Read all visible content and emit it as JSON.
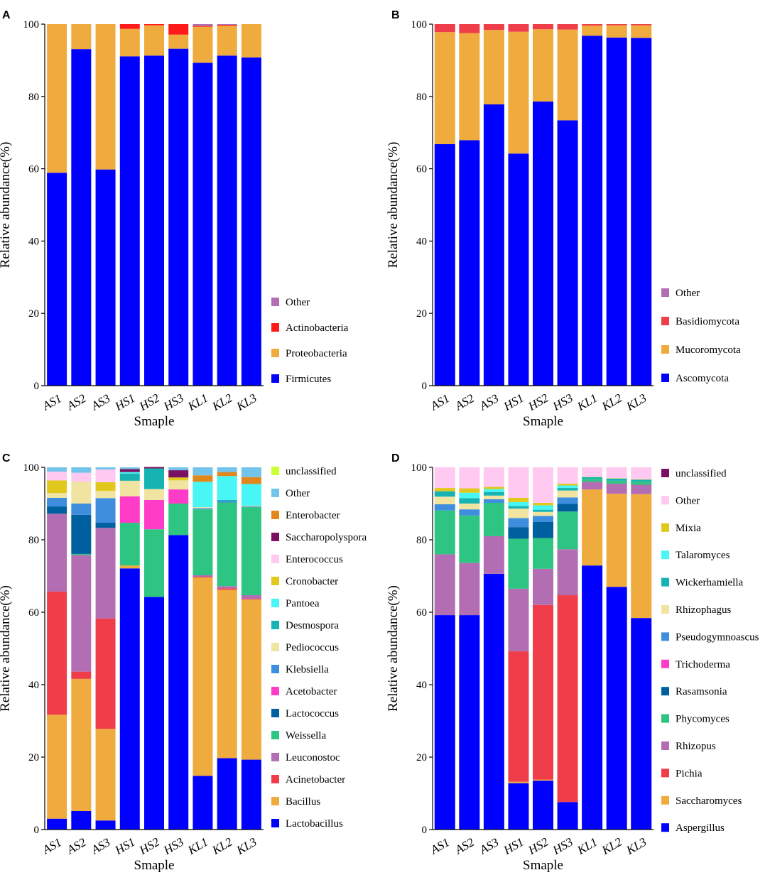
{
  "figure_title": "",
  "series_colors": {
    "Firmicutes": "#0000ff",
    "Proteobacteria": "#efab3e",
    "Actinobacteria": "#ff1a1a",
    "Other_A": "#b36eb3",
    "Ascomycota": "#0000ff",
    "Mucoromycota": "#efab3e",
    "Basidiomycota": "#ef3e4a",
    "Other_B": "#b36eb3",
    "Lactobacillus": "#0000ff",
    "Bacillus": "#efab3e",
    "Acinetobacter": "#ef3e4a",
    "Leuconostoc": "#b36eb3",
    "Weissella": "#2ec481",
    "Lactococcus": "#005f9e",
    "Acetobacter": "#ff3cc7",
    "Klebsiella": "#3f8ede",
    "Pediococcus": "#f0e4a0",
    "Desmospora": "#17b3b3",
    "Pantoea": "#48f6f6",
    "Cronobacter": "#e0c81c",
    "Enterococcus": "#ffc9f2",
    "Saccharopolyspora": "#7a1060",
    "Enterobacter": "#e0881c",
    "Other_C": "#73c4ea",
    "unclassified_C": "#ccff33",
    "Aspergillus": "#0000ff",
    "Saccharomyces": "#efab3e",
    "Pichia": "#ef3e4a",
    "Rhizopus": "#b36eb3",
    "Phycomyces": "#2ec481",
    "Rasamsonia": "#005f9e",
    "Trichoderma": "#ff3cc7",
    "Pseudogymnoascus": "#3f8ede",
    "Rhizophagus": "#f0e4a0",
    "Wickerhamiella": "#17b3b3",
    "Talaromyces": "#48f6f6",
    "Mixia": "#e0c81c",
    "Other_D": "#ffc9f2",
    "unclassified_D": "#7a1060"
  },
  "chart_data": [
    {
      "panel": "A",
      "type": "bar",
      "stacked": true,
      "categories": [
        "AS1",
        "AS2",
        "AS3",
        "HS1",
        "HS2",
        "HS3",
        "KL1",
        "KL2",
        "KL3"
      ],
      "xlabel": "Smaple",
      "ylabel": "Relative abundance(%)",
      "ylim": [
        0,
        100
      ],
      "yticks": [
        0,
        20,
        40,
        60,
        80,
        100
      ],
      "legend_position": "right",
      "series": [
        {
          "name": "Firmicutes",
          "color_key": "Firmicutes",
          "values": [
            58.9,
            93.1,
            59.8,
            91.1,
            91.3,
            93.2,
            89.3,
            91.3,
            90.8
          ]
        },
        {
          "name": "Proteobacteria",
          "color_key": "Proteobacteria",
          "values": [
            41.1,
            6.9,
            40.2,
            7.6,
            8.4,
            3.9,
            10.0,
            8.3,
            9.2
          ]
        },
        {
          "name": "Actinobacteria",
          "color_key": "Actinobacteria",
          "values": [
            0,
            0,
            0,
            1.3,
            0.3,
            2.9,
            0.2,
            0.2,
            0
          ]
        },
        {
          "name": "Other",
          "color_key": "Other_A",
          "values": [
            0,
            0,
            0,
            0,
            0,
            0,
            0.5,
            0.2,
            0
          ]
        }
      ],
      "legend": [
        "Other",
        "Actinobacteria",
        "Proteobacteria",
        "Firmicutes"
      ],
      "legend_keys": [
        "Other_A",
        "Actinobacteria",
        "Proteobacteria",
        "Firmicutes"
      ]
    },
    {
      "panel": "B",
      "type": "bar",
      "stacked": true,
      "categories": [
        "AS1",
        "AS2",
        "AS3",
        "HS1",
        "HS2",
        "HS3",
        "KL1",
        "KL2",
        "KL3"
      ],
      "xlabel": "Smaple",
      "ylabel": "Relative abundance(%)",
      "ylim": [
        0,
        100
      ],
      "yticks": [
        0,
        20,
        40,
        60,
        80,
        100
      ],
      "legend_position": "right",
      "series": [
        {
          "name": "Ascomycota",
          "color_key": "Ascomycota",
          "values": [
            66.8,
            67.9,
            77.8,
            64.2,
            78.6,
            73.4,
            96.8,
            96.3,
            96.2
          ]
        },
        {
          "name": "Mucoromycota",
          "color_key": "Mucoromycota",
          "values": [
            31.0,
            29.6,
            20.6,
            33.7,
            20.0,
            25.1,
            2.8,
            3.4,
            3.5
          ]
        },
        {
          "name": "Basidiomycota",
          "color_key": "Basidiomycota",
          "values": [
            2.2,
            2.5,
            1.6,
            2.1,
            1.4,
            1.5,
            0.4,
            0.3,
            0.3
          ]
        },
        {
          "name": "Other",
          "color_key": "Other_B",
          "values": [
            0,
            0,
            0,
            0,
            0,
            0,
            0,
            0,
            0
          ]
        }
      ],
      "legend": [
        "Other",
        "Basidiomycota",
        "Mucoromycota",
        "Ascomycota"
      ],
      "legend_keys": [
        "Other_B",
        "Basidiomycota",
        "Mucoromycota",
        "Ascomycota"
      ]
    },
    {
      "panel": "C",
      "type": "bar",
      "stacked": true,
      "categories": [
        "AS1",
        "AS2",
        "AS3",
        "HS1",
        "HS2",
        "HS3",
        "KL1",
        "KL2",
        "KL3"
      ],
      "xlabel": "Smaple",
      "ylabel": "Relative abundance(%)",
      "ylim": [
        0,
        100
      ],
      "yticks": [
        0,
        20,
        40,
        60,
        80,
        100
      ],
      "legend_position": "right",
      "series": [
        {
          "name": "Lactobacillus",
          "color_key": "Lactobacillus",
          "values": [
            3.0,
            5.1,
            2.5,
            72.1,
            64.2,
            81.3,
            14.8,
            19.7,
            19.3
          ]
        },
        {
          "name": "Bacillus",
          "color_key": "Bacillus",
          "values": [
            28.7,
            36.5,
            25.3,
            0.8,
            0,
            0,
            54.8,
            46.5,
            44.2
          ]
        },
        {
          "name": "Acinetobacter",
          "color_key": "Acinetobacter",
          "values": [
            34.0,
            2.0,
            30.5,
            0,
            0,
            0,
            0.2,
            0.4,
            0.2
          ]
        },
        {
          "name": "Leuconostoc",
          "color_key": "Leuconostoc",
          "values": [
            21.5,
            32.2,
            25.0,
            0,
            0,
            0,
            0.4,
            0.6,
            1.0
          ]
        },
        {
          "name": "Weissella",
          "color_key": "Weissella",
          "values": [
            0,
            0.3,
            0,
            11.8,
            18.7,
            8.7,
            18.2,
            23.1,
            24.3
          ]
        },
        {
          "name": "Lactococcus",
          "color_key": "Lactococcus",
          "values": [
            2.0,
            10.8,
            1.4,
            0,
            0,
            0,
            0,
            0,
            0
          ]
        },
        {
          "name": "Acetobacter",
          "color_key": "Acetobacter",
          "values": [
            0,
            0,
            0,
            7.3,
            8.1,
            3.9,
            0,
            0,
            0
          ]
        },
        {
          "name": "Klebsiella",
          "color_key": "Klebsiella",
          "values": [
            2.4,
            3.1,
            6.8,
            0,
            0,
            0,
            0.3,
            0.4,
            0.2
          ]
        },
        {
          "name": "Pediococcus",
          "color_key": "Pediococcus",
          "values": [
            1.3,
            6.0,
            2.0,
            4.3,
            3.0,
            2.5,
            0.3,
            0,
            0.2
          ]
        },
        {
          "name": "Desmospora",
          "color_key": "Desmospora",
          "values": [
            0,
            0,
            0,
            2.0,
            5.7,
            0,
            0,
            0.3,
            0
          ]
        },
        {
          "name": "Pantoea",
          "color_key": "Pantoea",
          "values": [
            0,
            0,
            0,
            0.4,
            0,
            0,
            7.0,
            6.6,
            6.0
          ]
        },
        {
          "name": "Cronobacter",
          "color_key": "Cronobacter",
          "values": [
            3.5,
            0,
            2.4,
            0,
            0,
            0.8,
            0,
            0,
            0
          ]
        },
        {
          "name": "Enterococcus",
          "color_key": "Enterococcus",
          "values": [
            2.4,
            2.5,
            3.5,
            0,
            0,
            0,
            0,
            0,
            0
          ]
        },
        {
          "name": "Saccharopolyspora",
          "color_key": "Saccharopolyspora",
          "values": [
            0,
            0,
            0,
            0.8,
            0.4,
            2.0,
            0,
            0,
            0
          ]
        },
        {
          "name": "Enterobacter",
          "color_key": "Enterobacter",
          "values": [
            0,
            0,
            0,
            0,
            0,
            0,
            1.8,
            1.1,
            1.9
          ]
        },
        {
          "name": "Other",
          "color_key": "Other_C",
          "values": [
            1.2,
            1.5,
            0.6,
            0.5,
            0,
            0.8,
            2.2,
            1.3,
            2.7
          ]
        },
        {
          "name": "unclassified",
          "color_key": "unclassified_C",
          "values": [
            0,
            0,
            0,
            0,
            0,
            0,
            0,
            0,
            0
          ]
        }
      ],
      "legend": [
        "unclassified",
        "Other",
        "Enterobacter",
        "Saccharopolyspora",
        "Enterococcus",
        "Cronobacter",
        "Pantoea",
        "Desmospora",
        "Pediococcus",
        "Klebsiella",
        "Acetobacter",
        "Lactococcus",
        "Weissella",
        "Leuconostoc",
        "Acinetobacter",
        "Bacillus",
        "Lactobacillus"
      ],
      "legend_keys": [
        "unclassified_C",
        "Other_C",
        "Enterobacter",
        "Saccharopolyspora",
        "Enterococcus",
        "Cronobacter",
        "Pantoea",
        "Desmospora",
        "Pediococcus",
        "Klebsiella",
        "Acetobacter",
        "Lactococcus",
        "Weissella",
        "Leuconostoc",
        "Acinetobacter",
        "Bacillus",
        "Lactobacillus"
      ]
    },
    {
      "panel": "D",
      "type": "bar",
      "stacked": true,
      "categories": [
        "AS1",
        "AS2",
        "AS3",
        "HS1",
        "HS2",
        "HS3",
        "KL1",
        "KL2",
        "KL3"
      ],
      "xlabel": "Smaple",
      "ylabel": "Relative abundance(%)",
      "ylim": [
        0,
        100
      ],
      "yticks": [
        0,
        20,
        40,
        60,
        80,
        100
      ],
      "legend_position": "right",
      "series": [
        {
          "name": "Aspergillus",
          "color_key": "Aspergillus",
          "values": [
            59.2,
            59.2,
            70.6,
            12.8,
            13.5,
            7.6,
            72.9,
            67.0,
            58.4
          ]
        },
        {
          "name": "Saccharomyces",
          "color_key": "Saccharomyces",
          "values": [
            0,
            0,
            0,
            0.4,
            0.3,
            0,
            21.0,
            25.7,
            34.2
          ]
        },
        {
          "name": "Pichia",
          "color_key": "Pichia",
          "values": [
            0,
            0,
            0,
            36.0,
            48.2,
            57.1,
            0,
            0,
            0
          ]
        },
        {
          "name": "Rhizopus",
          "color_key": "Rhizopus",
          "values": [
            16.8,
            14.4,
            10.4,
            17.3,
            10.0,
            12.7,
            2.1,
            2.8,
            2.6
          ]
        },
        {
          "name": "Phycomyces",
          "color_key": "Phycomyces",
          "values": [
            12.1,
            13.1,
            9.2,
            13.8,
            8.5,
            10.4,
            0.8,
            0.8,
            0.9
          ]
        },
        {
          "name": "Rasamsonia",
          "color_key": "Rasamsonia",
          "values": [
            0,
            0,
            0,
            3.2,
            4.4,
            2.1,
            0,
            0,
            0
          ]
        },
        {
          "name": "Trichoderma",
          "color_key": "Trichoderma",
          "values": [
            0,
            0,
            0,
            0,
            0,
            0,
            0,
            0,
            0
          ]
        },
        {
          "name": "Pseudogymnoascus",
          "color_key": "Pseudogymnoascus",
          "values": [
            1.7,
            1.7,
            1.0,
            2.5,
            1.7,
            1.8,
            0,
            0,
            0
          ]
        },
        {
          "name": "Rhizophagus",
          "color_key": "Rhizophagus",
          "values": [
            2.1,
            1.6,
            1.0,
            2.6,
            1.1,
            1.9,
            0,
            0,
            0
          ]
        },
        {
          "name": "Wickerhamiella",
          "color_key": "Wickerhamiella",
          "values": [
            1.5,
            1.5,
            1.0,
            0.7,
            0.6,
            0.7,
            0.5,
            0.6,
            0.5
          ]
        },
        {
          "name": "Talaromyces",
          "color_key": "Talaromyces",
          "values": [
            0,
            1.5,
            0.8,
            1.1,
            1.2,
            0.7,
            0,
            0,
            0
          ]
        },
        {
          "name": "Mixia",
          "color_key": "Mixia",
          "values": [
            0.9,
            1.2,
            0.6,
            1.2,
            0.7,
            0.5,
            0.1,
            0.1,
            0.1
          ]
        },
        {
          "name": "Other",
          "color_key": "Other_D",
          "values": [
            5.7,
            5.8,
            5.4,
            8.4,
            9.8,
            4.5,
            2.6,
            3.0,
            3.3
          ]
        },
        {
          "name": "unclassified",
          "color_key": "unclassified_D",
          "values": [
            0,
            0,
            0,
            0,
            0,
            0,
            0,
            0,
            0
          ]
        }
      ],
      "legend": [
        "unclassified",
        "Other",
        "Mixia",
        "Talaromyces",
        "Wickerhamiella",
        "Rhizophagus",
        "Pseudogymnoascus",
        "Trichoderma",
        "Rasamsonia",
        "Phycomyces",
        "Rhizopus",
        "Pichia",
        "Saccharomyces",
        "Aspergillus"
      ],
      "legend_keys": [
        "unclassified_D",
        "Other_D",
        "Mixia",
        "Talaromyces",
        "Wickerhamiella",
        "Rhizophagus",
        "Pseudogymnoascus",
        "Trichoderma",
        "Rasamsonia",
        "Phycomyces",
        "Rhizopus",
        "Pichia",
        "Saccharomyces",
        "Aspergillus"
      ]
    }
  ]
}
